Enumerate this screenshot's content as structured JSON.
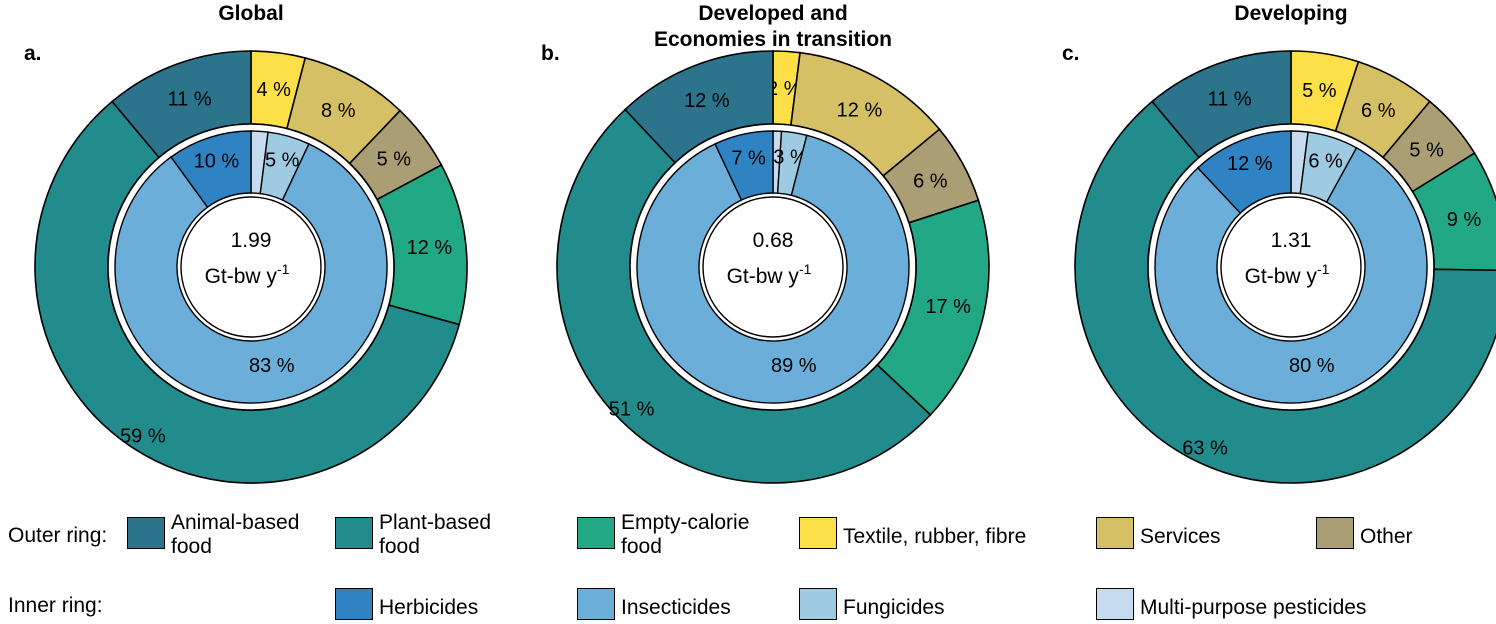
{
  "chart_data": [
    {
      "type": "donut",
      "panel_label": "a.",
      "title": "Global",
      "center_value": "1.99",
      "center_unit": "Gt-bw y",
      "center_unit_sup": "-1",
      "outer_ring": [
        {
          "category": "Textile, rubber, fibre",
          "value": 4,
          "label": "4 %"
        },
        {
          "category": "Services",
          "value": 8,
          "label": "8 %"
        },
        {
          "category": "Other",
          "value": 5,
          "label": "5 %"
        },
        {
          "category": "Empty-calorie food",
          "value": 12,
          "label": "12 %"
        },
        {
          "category": "Plant-based food",
          "value": 59,
          "label": "59 %"
        },
        {
          "category": "Animal-based food",
          "value": 11,
          "label": "11 %"
        }
      ],
      "inner_ring": [
        {
          "category": "Multi-purpose pesticides",
          "value": 2,
          "label": ""
        },
        {
          "category": "Fungicides",
          "value": 5,
          "label": "5 %"
        },
        {
          "category": "Insecticides",
          "value": 83,
          "label": "83 %"
        },
        {
          "category": "Herbicides",
          "value": 10,
          "label": "10 %"
        }
      ]
    },
    {
      "type": "donut",
      "panel_label": "b.",
      "title": "Developed and Economies in transition",
      "center_value": "0.68",
      "center_unit": "Gt-bw y",
      "center_unit_sup": "-1",
      "outer_ring": [
        {
          "category": "Textile, rubber, fibre",
          "value": 2,
          "label": "2 %"
        },
        {
          "category": "Services",
          "value": 12,
          "label": "12 %"
        },
        {
          "category": "Other",
          "value": 6,
          "label": "6 %"
        },
        {
          "category": "Empty-calorie food",
          "value": 17,
          "label": "17 %"
        },
        {
          "category": "Plant-based food",
          "value": 51,
          "label": "51 %"
        },
        {
          "category": "Animal-based food",
          "value": 12,
          "label": "12 %"
        }
      ],
      "inner_ring": [
        {
          "category": "Multi-purpose pesticides",
          "value": 1,
          "label": ""
        },
        {
          "category": "Fungicides",
          "value": 3,
          "label": "3 %"
        },
        {
          "category": "Insecticides",
          "value": 89,
          "label": "89 %"
        },
        {
          "category": "Herbicides",
          "value": 7,
          "label": "7 %"
        }
      ]
    },
    {
      "type": "donut",
      "panel_label": "c.",
      "title": "Developing",
      "center_value": "1.31",
      "center_unit": "Gt-bw y",
      "center_unit_sup": "-1",
      "outer_ring": [
        {
          "category": "Textile, rubber, fibre",
          "value": 5,
          "label": "5 %"
        },
        {
          "category": "Services",
          "value": 6,
          "label": "6 %"
        },
        {
          "category": "Other",
          "value": 5,
          "label": "5 %"
        },
        {
          "category": "Empty-calorie food",
          "value": 9,
          "label": "9 %"
        },
        {
          "category": "Plant-based food",
          "value": 63,
          "label": "63 %"
        },
        {
          "category": "Animal-based food",
          "value": 11,
          "label": "11 %"
        }
      ],
      "inner_ring": [
        {
          "category": "Multi-purpose pesticides",
          "value": 2,
          "label": ""
        },
        {
          "category": "Fungicides",
          "value": 6,
          "label": "6 %"
        },
        {
          "category": "Insecticides",
          "value": 80,
          "label": "80 %"
        },
        {
          "category": "Herbicides",
          "value": 12,
          "label": "12 %"
        }
      ]
    }
  ],
  "colors": {
    "Animal-based food": "#2b748c",
    "Plant-based food": "#228c8c",
    "Empty-calorie food": "#22a884",
    "Textile, rubber, fibre": "#fde047",
    "Services": "#d6c066",
    "Other": "#aa9f74",
    "Herbicides": "#3083c2",
    "Insecticides": "#6aaed9",
    "Fungicides": "#9ecae2",
    "Multi-purpose pesticides": "#c6dbef"
  },
  "legend": {
    "outer_label": "Outer ring:",
    "inner_label": "Inner ring:",
    "outer_items": [
      {
        "category": "Animal-based food",
        "text": "Animal-based food"
      },
      {
        "category": "Plant-based food",
        "text": "Plant-based food"
      },
      {
        "category": "Empty-calorie food",
        "text": "Empty-calorie food"
      },
      {
        "category": "Textile, rubber, fibre",
        "text": "Textile, rubber, fibre"
      },
      {
        "category": "Services",
        "text": "Services"
      },
      {
        "category": "Other",
        "text": "Other"
      }
    ],
    "inner_items": [
      {
        "category": "Herbicides",
        "text": "Herbicides"
      },
      {
        "category": "Insecticides",
        "text": "Insecticides"
      },
      {
        "category": "Fungicides",
        "text": "Fungicides"
      },
      {
        "category": "Multi-purpose pesticides",
        "text": "Multi-purpose pesticides"
      }
    ]
  }
}
